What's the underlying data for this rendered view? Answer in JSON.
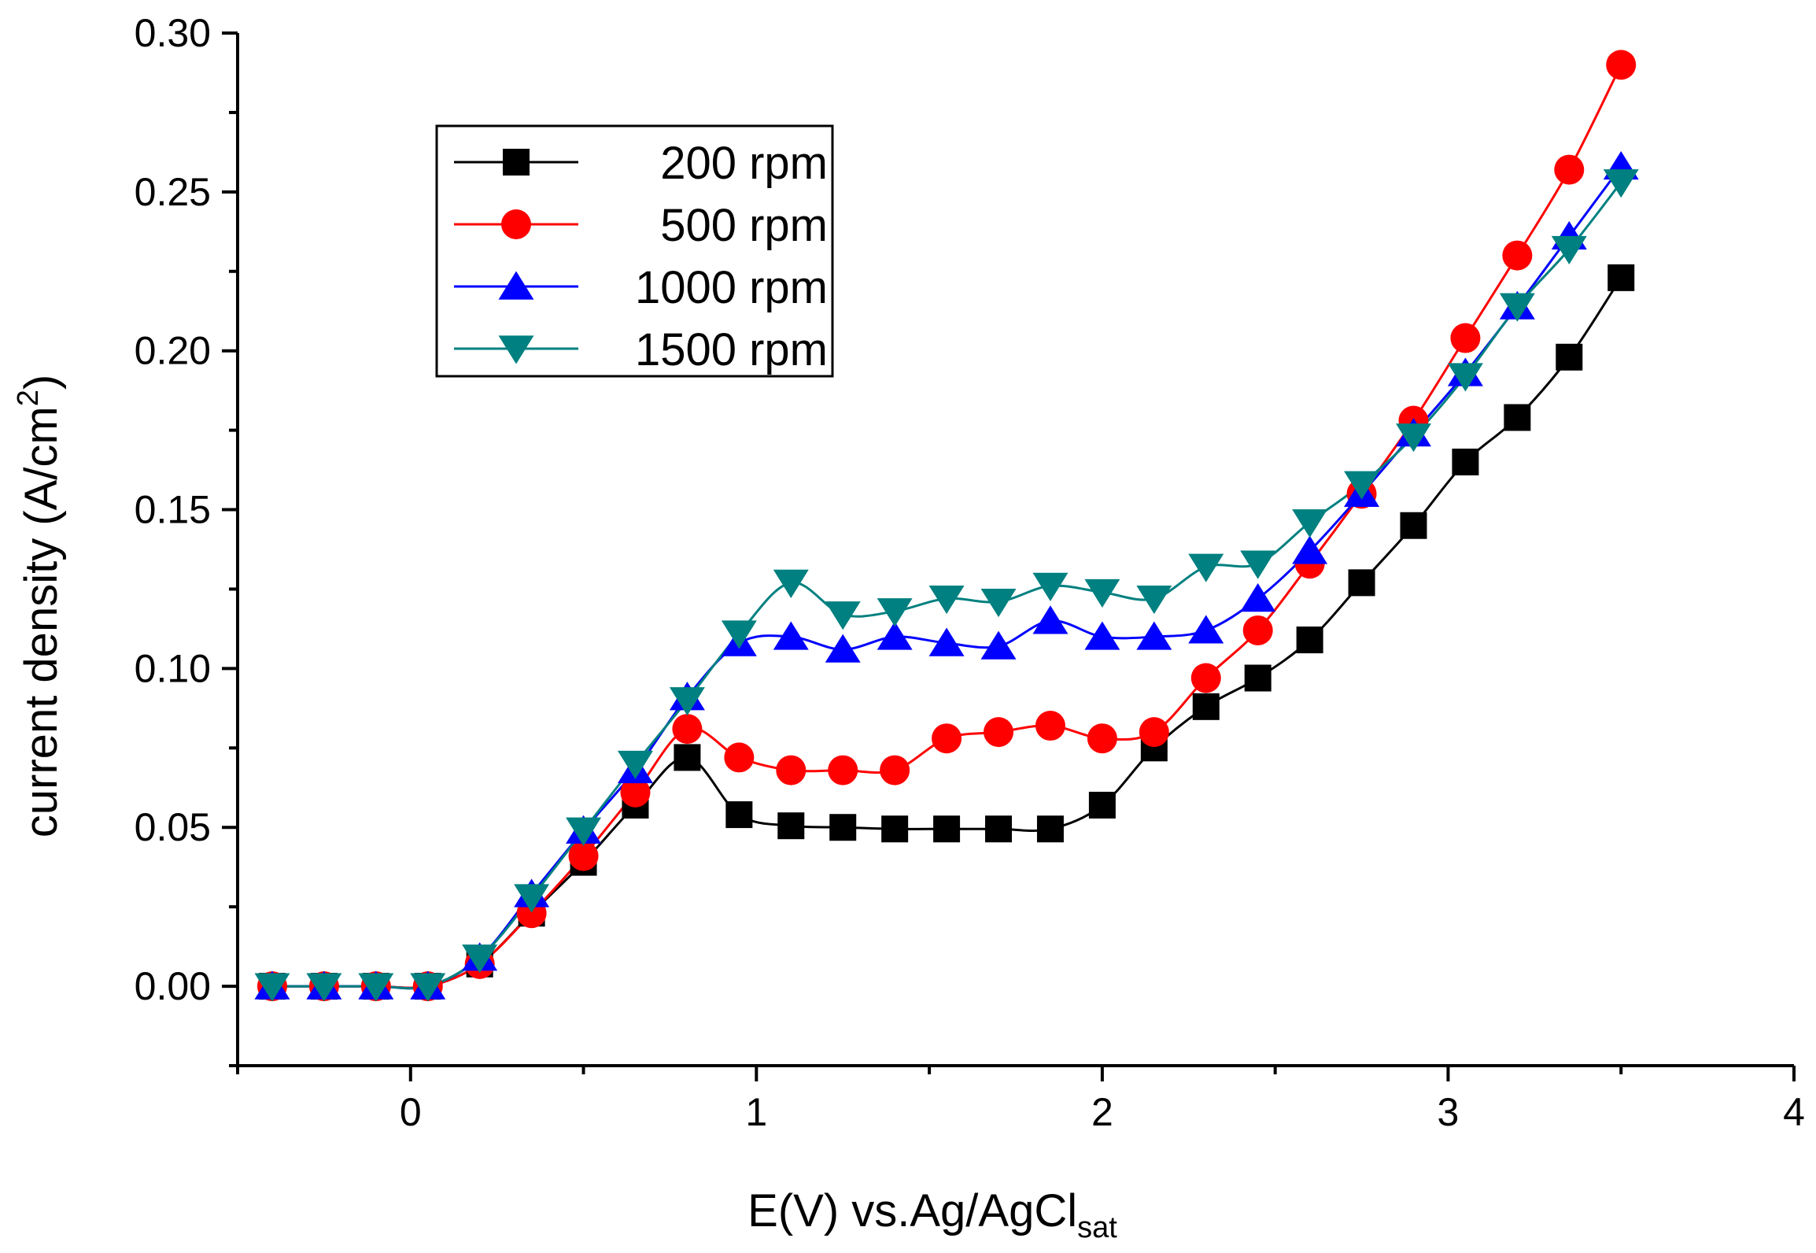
{
  "chart_data": {
    "type": "line",
    "title": "",
    "xlabel": "E(V) vs.Ag/AgCl",
    "xlabel_sub": "sat",
    "ylabel": "current density (A/cm",
    "ylabel_sup": "2",
    "ylabel_end": ")",
    "xlim": [
      -0.5,
      4.0
    ],
    "ylim": [
      -0.025,
      0.3
    ],
    "x_ticks": [
      0,
      1,
      2,
      3,
      4
    ],
    "x_tick_labels": [
      "0",
      "1",
      "2",
      "3",
      "4"
    ],
    "y_ticks": [
      0.0,
      0.05,
      0.1,
      0.15,
      0.2,
      0.25,
      0.3
    ],
    "y_tick_labels": [
      "0.00",
      "0.05",
      "0.10",
      "0.15",
      "0.20",
      "0.25",
      "0.30"
    ],
    "grid": false,
    "legend_position": "top-left",
    "x": [
      -0.4,
      -0.25,
      -0.1,
      0.05,
      0.2,
      0.35,
      0.5,
      0.65,
      0.8,
      0.95,
      1.1,
      1.25,
      1.4,
      1.55,
      1.7,
      1.85,
      2.0,
      2.15,
      2.3,
      2.45,
      2.6,
      2.75,
      2.9,
      3.05,
      3.2,
      3.35,
      3.5
    ],
    "series": [
      {
        "name": "200 rpm",
        "color": "#000000",
        "marker": "square",
        "values": [
          0.0,
          0.0,
          0.0,
          0.0,
          0.007,
          0.023,
          0.039,
          0.057,
          0.072,
          0.054,
          0.0505,
          0.05,
          0.0495,
          0.0495,
          0.0495,
          0.0495,
          0.057,
          0.075,
          0.088,
          0.097,
          0.109,
          0.127,
          0.145,
          0.165,
          0.179,
          0.198,
          0.223
        ]
      },
      {
        "name": "500 rpm",
        "color": "#ff0000",
        "marker": "circle",
        "values": [
          0.0,
          0.0,
          0.0,
          0.0,
          0.007,
          0.023,
          0.041,
          0.061,
          0.081,
          0.072,
          0.068,
          0.068,
          0.068,
          0.078,
          0.08,
          0.082,
          0.078,
          0.08,
          0.097,
          0.112,
          0.133,
          0.155,
          0.178,
          0.204,
          0.23,
          0.257,
          0.29
        ]
      },
      {
        "name": "1000 rpm",
        "color": "#0000ff",
        "marker": "triangle-up",
        "values": [
          0.0,
          0.0,
          0.0,
          0.0,
          0.009,
          0.029,
          0.049,
          0.068,
          0.091,
          0.108,
          0.11,
          0.106,
          0.11,
          0.108,
          0.107,
          0.115,
          0.11,
          0.11,
          0.112,
          0.122,
          0.137,
          0.155,
          0.174,
          0.193,
          0.214,
          0.236,
          0.258
        ]
      },
      {
        "name": "1500 rpm",
        "color": "#008080",
        "marker": "triangle-down",
        "values": [
          0.0,
          0.0,
          0.0,
          0.0,
          0.009,
          0.028,
          0.049,
          0.07,
          0.09,
          0.111,
          0.127,
          0.117,
          0.118,
          0.122,
          0.121,
          0.126,
          0.124,
          0.122,
          0.132,
          0.133,
          0.146,
          0.158,
          0.173,
          0.192,
          0.214,
          0.232,
          0.253
        ]
      }
    ]
  }
}
